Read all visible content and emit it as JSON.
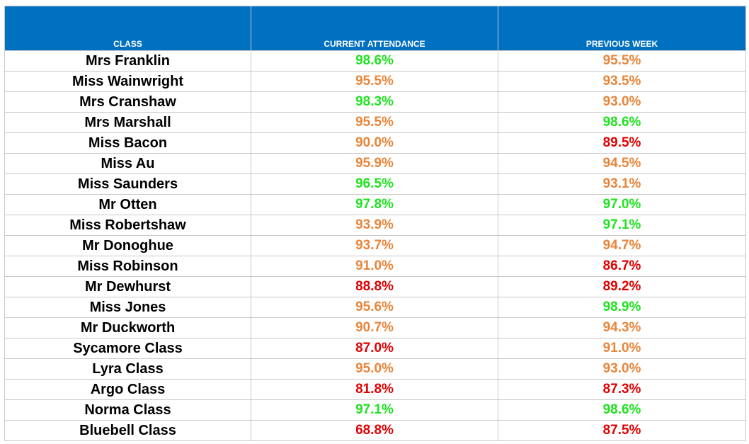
{
  "table": {
    "headers": [
      "CLASS",
      "CURRENT ATTENDANCE",
      "PREVIOUS WEEK"
    ],
    "status_colors": {
      "good": "#1fe31f",
      "ok": "#e8853a",
      "low": "#e00000"
    },
    "header_background": "#0070c0",
    "rows": [
      {
        "name": "Mrs Franklin",
        "current": "98.6%",
        "current_status": "good",
        "previous": "95.5%",
        "previous_status": "ok"
      },
      {
        "name": "Miss Wainwright",
        "current": "95.5%",
        "current_status": "ok",
        "previous": "93.5%",
        "previous_status": "ok"
      },
      {
        "name": "Mrs Cranshaw",
        "current": "98.3%",
        "current_status": "good",
        "previous": "93.0%",
        "previous_status": "ok"
      },
      {
        "name": "Mrs Marshall",
        "current": "95.5%",
        "current_status": "ok",
        "previous": "98.6%",
        "previous_status": "good"
      },
      {
        "name": "Miss Bacon",
        "current": "90.0%",
        "current_status": "ok",
        "previous": "89.5%",
        "previous_status": "low"
      },
      {
        "name": "Miss Au",
        "current": "95.9%",
        "current_status": "ok",
        "previous": "94.5%",
        "previous_status": "ok"
      },
      {
        "name": "Miss Saunders",
        "current": "96.5%",
        "current_status": "good",
        "previous": "93.1%",
        "previous_status": "ok"
      },
      {
        "name": "Mr Otten",
        "current": "97.8%",
        "current_status": "good",
        "previous": "97.0%",
        "previous_status": "good"
      },
      {
        "name": "Miss Robertshaw",
        "current": "93.9%",
        "current_status": "ok",
        "previous": "97.1%",
        "previous_status": "good"
      },
      {
        "name": "Mr Donoghue",
        "current": "93.7%",
        "current_status": "ok",
        "previous": "94.7%",
        "previous_status": "ok"
      },
      {
        "name": "Miss Robinson",
        "current": "91.0%",
        "current_status": "ok",
        "previous": "86.7%",
        "previous_status": "low"
      },
      {
        "name": "Mr Dewhurst",
        "current": "88.8%",
        "current_status": "low",
        "previous": "89.2%",
        "previous_status": "low"
      },
      {
        "name": "Miss Jones",
        "current": "95.6%",
        "current_status": "ok",
        "previous": "98.9%",
        "previous_status": "good"
      },
      {
        "name": "Mr Duckworth",
        "current": "90.7%",
        "current_status": "ok",
        "previous": "94.3%",
        "previous_status": "ok"
      },
      {
        "name": "Sycamore Class",
        "current": "87.0%",
        "current_status": "low",
        "previous": "91.0%",
        "previous_status": "ok"
      },
      {
        "name": "Lyra Class",
        "current": "95.0%",
        "current_status": "ok",
        "previous": "93.0%",
        "previous_status": "ok"
      },
      {
        "name": "Argo Class",
        "current": "81.8%",
        "current_status": "low",
        "previous": "87.3%",
        "previous_status": "low"
      },
      {
        "name": "Norma Class",
        "current": "97.1%",
        "current_status": "good",
        "previous": "98.6%",
        "previous_status": "good"
      },
      {
        "name": "Bluebell Class",
        "current": "68.8%",
        "current_status": "low",
        "previous": "87.5%",
        "previous_status": "low"
      }
    ]
  }
}
